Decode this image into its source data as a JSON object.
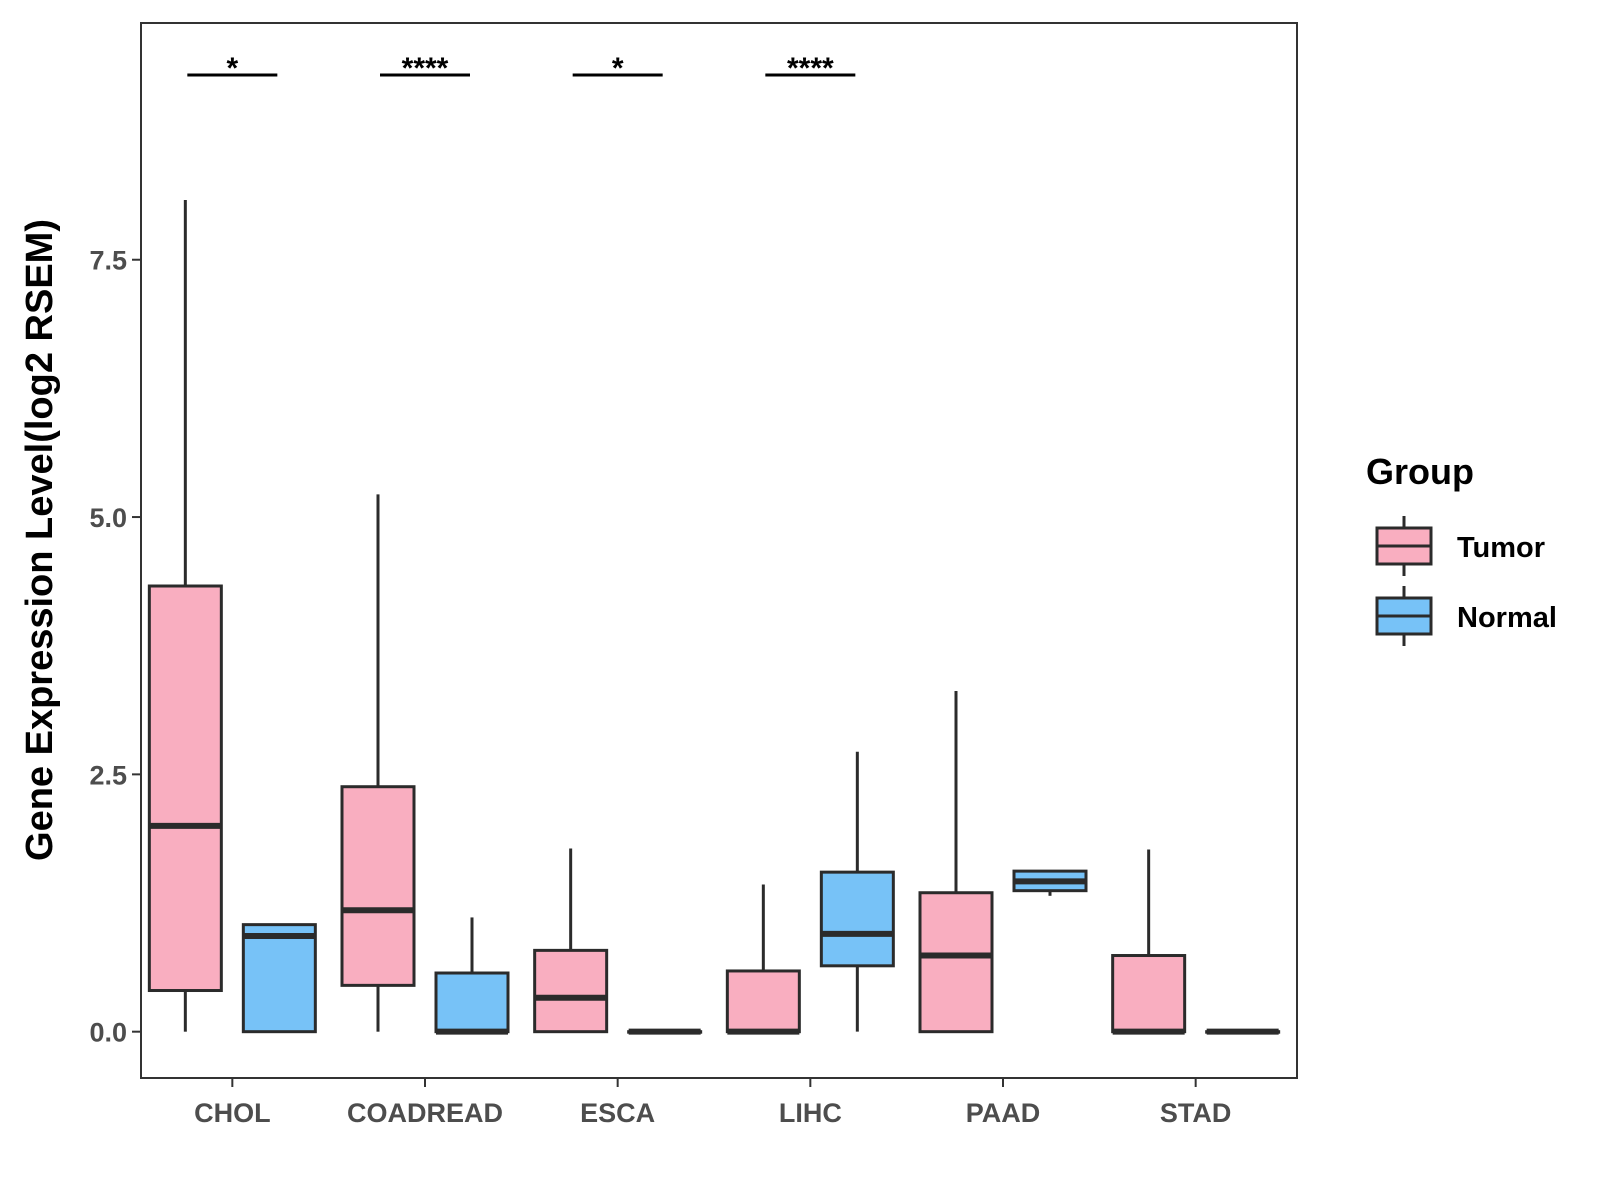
{
  "chart_data": {
    "type": "boxplot",
    "title": "",
    "xlabel": "",
    "ylabel": "Gene Expression Level(log2 RSEM)",
    "ylim": [
      -0.45,
      9.8
    ],
    "yticks": [
      0.0,
      2.5,
      5.0,
      7.5
    ],
    "ytick_labels": [
      "0.0",
      "2.5",
      "5.0",
      "7.5"
    ],
    "categories": [
      "CHOL",
      "COADREAD",
      "ESCA",
      "LIHC",
      "PAAD",
      "STAD"
    ],
    "legend": {
      "title": "Group",
      "position": "right",
      "entries": [
        {
          "name": "Tumor",
          "color": "#f9aec0"
        },
        {
          "name": "Normal",
          "color": "#77c2f7"
        }
      ]
    },
    "series": [
      {
        "name": "Tumor",
        "color": "#f9aec0",
        "boxes": [
          {
            "category": "CHOL",
            "low": 0.0,
            "q1": 0.4,
            "median": 2.0,
            "q3": 4.33,
            "high": 8.08
          },
          {
            "category": "COADREAD",
            "low": 0.0,
            "q1": 0.45,
            "median": 1.18,
            "q3": 2.38,
            "high": 5.22
          },
          {
            "category": "ESCA",
            "low": 0.0,
            "q1": 0.0,
            "median": 0.33,
            "q3": 0.79,
            "high": 1.78
          },
          {
            "category": "LIHC",
            "low": 0.0,
            "q1": 0.0,
            "median": 0.0,
            "q3": 0.59,
            "high": 1.43
          },
          {
            "category": "PAAD",
            "low": 0.0,
            "q1": 0.0,
            "median": 0.74,
            "q3": 1.35,
            "high": 3.31
          },
          {
            "category": "STAD",
            "low": 0.0,
            "q1": 0.0,
            "median": 0.0,
            "q3": 0.74,
            "high": 1.77
          }
        ]
      },
      {
        "name": "Normal",
        "color": "#77c2f7",
        "boxes": [
          {
            "category": "CHOL",
            "low": 0.0,
            "q1": 0.0,
            "median": 0.93,
            "q3": 1.04,
            "high": 1.04
          },
          {
            "category": "COADREAD",
            "low": 0.0,
            "q1": 0.0,
            "median": 0.0,
            "q3": 0.57,
            "high": 1.11
          },
          {
            "category": "ESCA",
            "low": 0.0,
            "q1": 0.0,
            "median": 0.0,
            "q3": 0.0,
            "high": 0.0
          },
          {
            "category": "LIHC",
            "low": 0.0,
            "q1": 0.64,
            "median": 0.95,
            "q3": 1.55,
            "high": 2.72
          },
          {
            "category": "PAAD",
            "low": 1.32,
            "q1": 1.37,
            "median": 1.46,
            "q3": 1.56,
            "high": 1.56
          },
          {
            "category": "STAD",
            "low": 0.0,
            "q1": 0.0,
            "median": 0.0,
            "q3": 0.0,
            "high": 0.0
          }
        ]
      }
    ],
    "significance": [
      {
        "category": "CHOL",
        "label": "*"
      },
      {
        "category": "COADREAD",
        "label": "****"
      },
      {
        "category": "ESCA",
        "label": "*"
      },
      {
        "category": "LIHC",
        "label": "****"
      }
    ]
  }
}
